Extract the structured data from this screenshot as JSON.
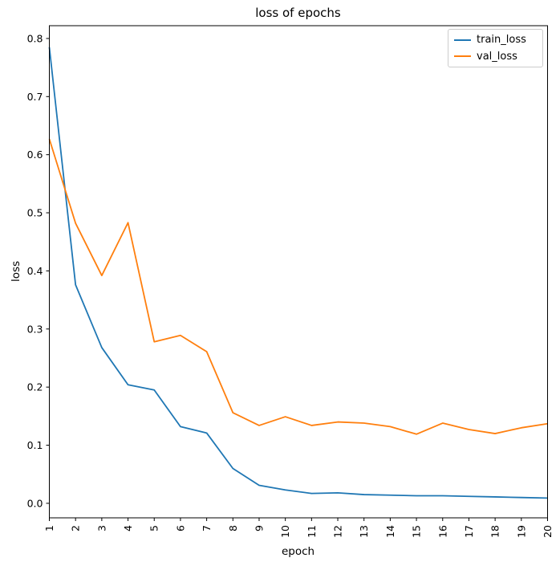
{
  "title": "loss of epochs",
  "chart_data": {
    "type": "line",
    "title": "loss of epochs",
    "xlabel": "epoch",
    "ylabel": "loss",
    "x": [
      1,
      2,
      3,
      4,
      5,
      6,
      7,
      8,
      9,
      10,
      11,
      12,
      13,
      14,
      15,
      16,
      17,
      18,
      19,
      20
    ],
    "series": [
      {
        "name": "train_loss",
        "color": "#1f77b4",
        "values": [
          0.785,
          0.376,
          0.268,
          0.204,
          0.195,
          0.132,
          0.121,
          0.06,
          0.031,
          0.023,
          0.017,
          0.018,
          0.015,
          0.014,
          0.013,
          0.013,
          0.012,
          0.011,
          0.01,
          0.009
        ]
      },
      {
        "name": "val_loss",
        "color": "#ff7f0e",
        "values": [
          0.627,
          0.482,
          0.392,
          0.483,
          0.278,
          0.289,
          0.261,
          0.156,
          0.134,
          0.149,
          0.134,
          0.14,
          0.138,
          0.132,
          0.119,
          0.138,
          0.127,
          0.12,
          0.13,
          0.137
        ]
      }
    ],
    "xlim": [
      1,
      20
    ],
    "ylim": [
      -0.025,
      0.822
    ],
    "x_ticks": [
      1,
      2,
      3,
      4,
      5,
      6,
      7,
      8,
      9,
      10,
      11,
      12,
      13,
      14,
      15,
      16,
      17,
      18,
      19,
      20
    ],
    "x_tick_rotation": 90,
    "y_ticks": [
      "0.0",
      "0.1",
      "0.2",
      "0.3",
      "0.4",
      "0.5",
      "0.6",
      "0.7",
      "0.8"
    ],
    "grid": false,
    "legend_position": "upper right"
  }
}
